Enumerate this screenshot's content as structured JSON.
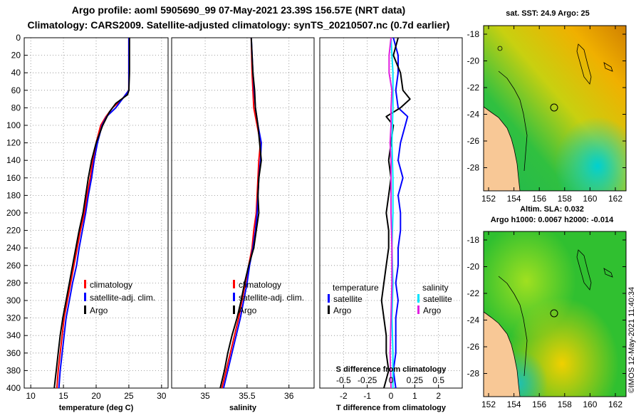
{
  "header": {
    "line1": "Argo profile: aoml 5905690_99 07-May-2021 23.39S 156.57E (NRT data)",
    "line2": "Climatology: CARS2009. Satellite-adjusted climatology: synTS_20210507.nc (0.7d earlier)"
  },
  "colors": {
    "climatology": "#ff0000",
    "satellite": "#0000ff",
    "argo": "#000000",
    "salinity_sat": "#00e5ff",
    "salinity_argo": "#e020e0",
    "land": "#f8c896"
  },
  "depth_axis": {
    "ticks": [
      0,
      20,
      40,
      60,
      80,
      100,
      120,
      140,
      160,
      180,
      200,
      220,
      240,
      260,
      280,
      300,
      320,
      340,
      360,
      380,
      400
    ],
    "range": [
      0,
      400
    ]
  },
  "chart_data": [
    {
      "type": "line",
      "name": "temperature",
      "xlabel": "temperature (deg C)",
      "xlim": [
        9,
        31
      ],
      "xticks": [
        10,
        15,
        20,
        25,
        30
      ],
      "xtick_labels": [
        "10",
        "15",
        "20",
        "25",
        "30"
      ],
      "legend": [
        "climatology",
        "satellite-adj. clim.",
        "Argo"
      ],
      "series": [
        {
          "name": "climatology",
          "color": "#ff0000",
          "depth": [
            0,
            20,
            40,
            60,
            70,
            80,
            90,
            100,
            120,
            140,
            160,
            180,
            200,
            220,
            240,
            260,
            280,
            300,
            320,
            340,
            360,
            380,
            400
          ],
          "values": [
            25,
            25,
            25,
            25,
            24,
            22.5,
            21.5,
            20.7,
            20,
            19.5,
            19.1,
            18.6,
            18.2,
            17.6,
            17.1,
            16.6,
            16.1,
            15.6,
            15.1,
            14.8,
            14.5,
            14.2,
            14.0
          ]
        },
        {
          "name": "satellite-adj. clim.",
          "color": "#0000ff",
          "depth": [
            0,
            20,
            40,
            60,
            70,
            80,
            90,
            100,
            120,
            140,
            160,
            180,
            200,
            220,
            240,
            260,
            280,
            300,
            320,
            340,
            360,
            380,
            400
          ],
          "values": [
            25,
            25,
            25,
            25,
            24,
            23,
            21.6,
            20.9,
            20.2,
            19.7,
            19.3,
            18.8,
            18.4,
            17.9,
            17.4,
            17,
            16.4,
            15.9,
            15.4,
            15.1,
            14.8,
            14.5,
            14.3
          ]
        },
        {
          "name": "Argo",
          "color": "#000000",
          "depth": [
            0,
            20,
            40,
            60,
            65,
            75,
            85,
            100,
            120,
            140,
            160,
            180,
            200,
            220,
            240,
            260,
            280,
            300,
            320,
            340,
            360,
            380,
            400
          ],
          "values": [
            25.1,
            25.1,
            25.1,
            25,
            24.8,
            23,
            22,
            21,
            20,
            19.3,
            18.8,
            18.4,
            18,
            17.4,
            16.9,
            16.4,
            15.9,
            15.4,
            14.9,
            14.5,
            14.2,
            13.9,
            13.6
          ]
        }
      ]
    },
    {
      "type": "line",
      "name": "salinity",
      "xlabel": "salinity",
      "xlim": [
        34.6,
        36.3
      ],
      "xticks": [
        35,
        35.5,
        36
      ],
      "xtick_labels": [
        "35",
        "35.5",
        "36"
      ],
      "legend": [
        "climatology",
        "satellite-adj. clim.",
        "Argo"
      ],
      "series": [
        {
          "name": "climatology",
          "color": "#ff0000",
          "depth": [
            0,
            40,
            80,
            100,
            120,
            140,
            160,
            180,
            200,
            220,
            240,
            260,
            280,
            300,
            320,
            340,
            360,
            380,
            400
          ],
          "values": [
            35.55,
            35.56,
            35.58,
            35.62,
            35.66,
            35.64,
            35.63,
            35.62,
            35.61,
            35.58,
            35.56,
            35.52,
            35.48,
            35.44,
            35.4,
            35.35,
            35.3,
            35.25,
            35.2
          ]
        },
        {
          "name": "satellite-adj. clim.",
          "color": "#0000ff",
          "depth": [
            0,
            40,
            80,
            100,
            120,
            140,
            160,
            180,
            200,
            220,
            240,
            260,
            280,
            300,
            320,
            340,
            360,
            380,
            400
          ],
          "values": [
            35.55,
            35.57,
            35.6,
            35.63,
            35.67,
            35.66,
            35.64,
            35.63,
            35.62,
            35.6,
            35.57,
            35.53,
            35.5,
            35.46,
            35.42,
            35.37,
            35.32,
            35.27,
            35.22
          ]
        },
        {
          "name": "Argo",
          "color": "#000000",
          "depth": [
            0,
            20,
            40,
            60,
            80,
            100,
            120,
            140,
            160,
            180,
            200,
            220,
            240,
            260,
            280,
            300,
            320,
            340,
            360,
            380,
            400
          ],
          "values": [
            35.55,
            35.56,
            35.57,
            35.59,
            35.6,
            35.63,
            35.65,
            35.67,
            35.64,
            35.63,
            35.64,
            35.61,
            35.58,
            35.52,
            35.47,
            35.43,
            35.38,
            35.32,
            35.27,
            35.23,
            35.18
          ]
        }
      ]
    },
    {
      "type": "line",
      "name": "difference",
      "xlabel": "T difference from climatology",
      "xlim": [
        -3,
        3
      ],
      "xticks": [
        -2,
        -1,
        0,
        1,
        2
      ],
      "xtick_labels": [
        "-2",
        "-1",
        "0",
        "1",
        "2"
      ],
      "top_axis_label": "S difference from climatology",
      "top_ticks": [
        -0.5,
        -0.25,
        0,
        0.25,
        0.5
      ],
      "top_tick_labels": [
        "-0.5",
        "-0.25",
        "0",
        "0.25",
        "0.5"
      ],
      "legend_left": {
        "title": "temperature",
        "items": [
          "satellite",
          "Argo"
        ]
      },
      "legend_right": {
        "title": "salinity",
        "items": [
          "satellite",
          "Argo"
        ]
      },
      "series": [
        {
          "name": "temperature satellite",
          "color": "#0000ff",
          "depth": [
            0,
            20,
            40,
            60,
            80,
            90,
            100,
            120,
            140,
            160,
            180,
            200,
            220,
            240,
            260,
            280,
            300,
            320,
            340,
            360,
            380,
            400
          ],
          "values": [
            0.1,
            0.3,
            0.3,
            0.2,
            0.3,
            0.7,
            0.6,
            0.4,
            0.3,
            0.5,
            0.3,
            0.4,
            0.4,
            0.3,
            0.3,
            0.2,
            0.3,
            0.2,
            0.2,
            0.2,
            0.1,
            0.2
          ]
        },
        {
          "name": "temperature Argo",
          "color": "#000000",
          "depth": [
            0,
            20,
            40,
            60,
            70,
            80,
            90,
            100,
            120,
            140,
            160,
            180,
            200,
            220,
            240,
            260,
            280,
            300,
            320,
            340,
            360,
            380,
            400
          ],
          "values": [
            0.3,
            0.1,
            0.4,
            0.5,
            0.8,
            0.4,
            -0.2,
            0.1,
            0,
            -0.1,
            0,
            -0.1,
            -0.2,
            -0.1,
            -0.1,
            -0.2,
            -0.3,
            -0.4,
            -0.3,
            -0.2,
            -0.2,
            -0.1,
            -0.3
          ]
        },
        {
          "name": "salinity satellite",
          "color": "#00e5ff",
          "depth": [
            0,
            40,
            80,
            120,
            160,
            200,
            240,
            280,
            320,
            360,
            400
          ],
          "values": [
            0,
            0.02,
            0.02,
            0.01,
            0.02,
            0.02,
            0.01,
            0.02,
            0.01,
            0.02,
            0.02
          ]
        },
        {
          "name": "salinity Argo",
          "color": "#e020e0",
          "depth": [
            0,
            20,
            40,
            60,
            80,
            100,
            120,
            140,
            160,
            200,
            240,
            280,
            320,
            360,
            400
          ],
          "values": [
            0,
            -0.02,
            -0.02,
            0.01,
            0,
            0,
            -0.01,
            0,
            0,
            0,
            0.01,
            0.01,
            0,
            -0.01,
            0
          ]
        }
      ]
    }
  ],
  "maps": [
    {
      "title": "sat. SST: 24.9 Argo: 25",
      "lat_labels": [
        "-18",
        "-20",
        "-22",
        "-24",
        "-26",
        "-28"
      ],
      "lon_labels": [
        "152",
        "154",
        "156",
        "158",
        "160",
        "162"
      ]
    },
    {
      "title": "Altim. SLA: 0.032",
      "subtitle": "Argo h1000: 0.0067 h2000: -0.014",
      "lat_labels": [
        "-18",
        "-20",
        "-22",
        "-24",
        "-26",
        "-28"
      ],
      "lon_labels": [
        "152",
        "154",
        "156",
        "158",
        "160",
        "162"
      ]
    }
  ],
  "credit": "©IMOS 12-May-2021 11:40:34"
}
